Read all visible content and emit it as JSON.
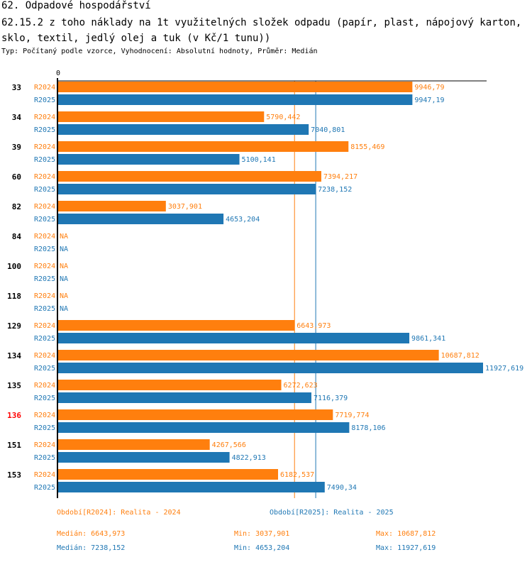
{
  "header": {
    "title": "62. Odpadové hospodářství",
    "subtitle": "62.15.2 z toho náklady na 1t využitelných složek odpadu (papír, plast, nápojový karton, sklo, textil, jedlý olej a tuk (v Kč/1 tunu))",
    "meta": "Typ: Počítaný podle vzorce, Vyhodnocení: Absolutní hodnoty, Průměr: Medián"
  },
  "colors": {
    "R2024": "#ff7f0e",
    "R2025": "#1f77b4",
    "highlight": "#ff0000",
    "axis": "#000000"
  },
  "chart_data": {
    "type": "bar",
    "orientation": "horizontal",
    "axis_zero_label": "0",
    "xlim": [
      0,
      12000
    ],
    "categories": [
      "33",
      "34",
      "39",
      "60",
      "82",
      "84",
      "100",
      "118",
      "129",
      "134",
      "135",
      "136",
      "151",
      "153"
    ],
    "highlighted_category": "136",
    "series": [
      {
        "name": "R2024",
        "values": [
          9946.79,
          5790.442,
          8155.469,
          7394.217,
          3037.901,
          null,
          null,
          null,
          6643.973,
          10687.812,
          6272.623,
          7719.774,
          4267.566,
          6182.537
        ],
        "labels": [
          "9946,79",
          "5790,442",
          "8155,469",
          "7394,217",
          "3037,901",
          "NA",
          "NA",
          "NA",
          "6643,973",
          "10687,812",
          "6272,623",
          "7719,774",
          "4267,566",
          "6182,537"
        ],
        "median": 6643.973
      },
      {
        "name": "R2025",
        "values": [
          9947.19,
          7040.801,
          5100.141,
          7238.152,
          4653.204,
          null,
          null,
          null,
          9861.341,
          11927.619,
          7116.379,
          8178.106,
          4822.913,
          7490.34
        ],
        "labels": [
          "9947,19",
          "7040,801",
          "5100,141",
          "7238,152",
          "4653,204",
          "NA",
          "NA",
          "NA",
          "9861,341",
          "11927,619",
          "7116,379",
          "8178,106",
          "4822,913",
          "7490,34"
        ],
        "median": 7238.152
      }
    ]
  },
  "legend": {
    "r2024": "Období[R2024]: Realita - 2024",
    "r2025": "Období[R2025]: Realita - 2025"
  },
  "stats": {
    "r2024": {
      "median": "Medián: 6643,973",
      "min": "Min: 3037,901",
      "max": "Max: 10687,812"
    },
    "r2025": {
      "median": "Medián: 7238,152",
      "min": "Min: 4653,204",
      "max": "Max: 11927,619"
    }
  }
}
